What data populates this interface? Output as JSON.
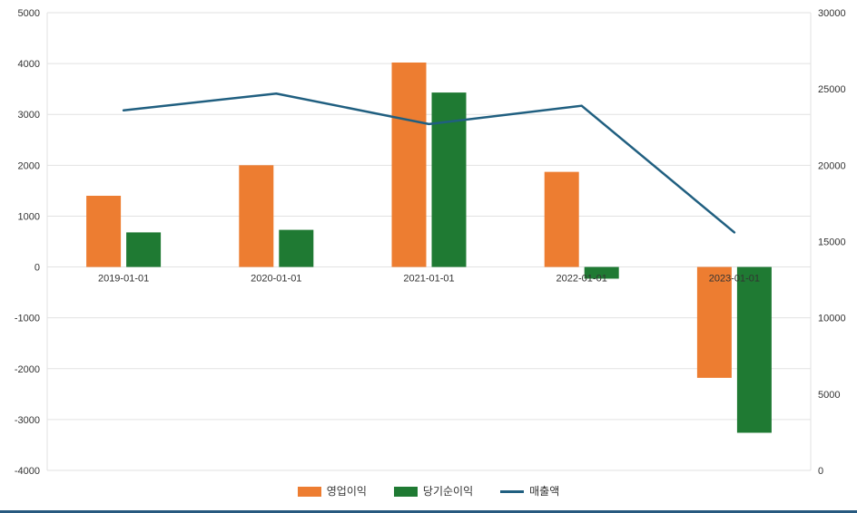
{
  "chart_data": {
    "type": "bar",
    "subtype": "grouped bars with overlaid line, dual y-axes",
    "categories": [
      "2019-01-01",
      "2020-01-01",
      "2021-01-01",
      "2022-01-01",
      "2023-01-01"
    ],
    "bar_series": [
      {
        "name": "영업이익",
        "color": "#ed7d31",
        "axis": "left",
        "values": [
          1400,
          2000,
          4020,
          1870,
          -2180
        ]
      },
      {
        "name": "당기순이익",
        "color": "#1f7a33",
        "axis": "left",
        "values": [
          680,
          730,
          3430,
          -230,
          -3260
        ]
      }
    ],
    "line_series": [
      {
        "name": "매출액",
        "color": "#205f80",
        "axis": "right",
        "values": [
          23600,
          24700,
          22700,
          23900,
          15600
        ]
      }
    ],
    "left_axis": {
      "min": -4000,
      "max": 5000,
      "ticks": [
        5000,
        4000,
        3000,
        2000,
        1000,
        0,
        -1000,
        -2000,
        -3000,
        -4000
      ]
    },
    "right_axis": {
      "min": 0,
      "max": 30000,
      "ticks": [
        30000,
        25000,
        20000,
        15000,
        10000,
        5000,
        0
      ]
    },
    "title": "",
    "xlabel": "",
    "ylabel_left": "",
    "ylabel_right": "",
    "grid": true,
    "legend_position": "bottom-center"
  },
  "legend": {
    "items": [
      {
        "label": "영업이익",
        "type": "bar",
        "color": "#ed7d31"
      },
      {
        "label": "당기순이익",
        "type": "bar",
        "color": "#1f7a33"
      },
      {
        "label": "매출액",
        "type": "line",
        "color": "#205f80"
      }
    ]
  }
}
